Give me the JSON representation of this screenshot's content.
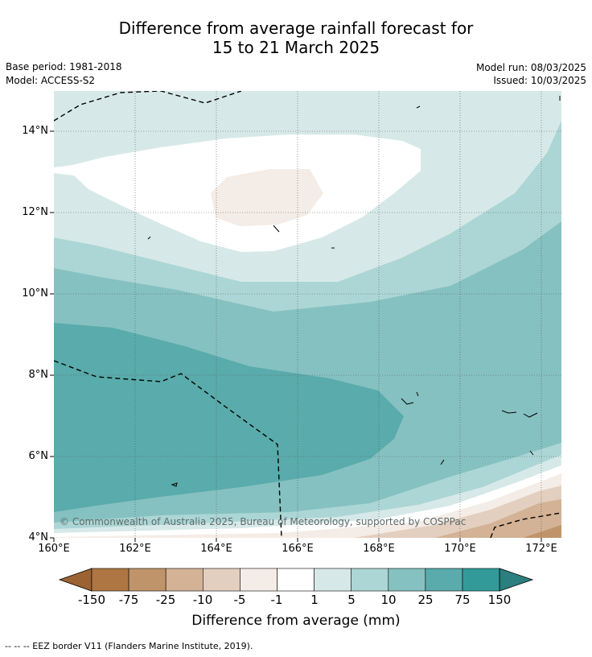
{
  "title_line1": "Difference from average rainfall forecast for",
  "title_line2": "15 to 21 March 2025",
  "base_period": "Base period: 1981-2018",
  "model": "Model: ACCESS-S2",
  "model_run": "Model run: 08/03/2025",
  "issued": "Issued: 10/03/2025",
  "lat_labels": [
    "14°N",
    "12°N",
    "10°N",
    "8°N",
    "6°N",
    "4°N"
  ],
  "lon_labels": [
    "160°E",
    "162°E",
    "164°E",
    "166°E",
    "168°E",
    "170°E",
    "172°E"
  ],
  "copyright": "© Commonwealth of Australia 2025, Bureau of Meteorology, supported by COSPPac",
  "colorbar": {
    "labels": [
      "-150",
      "-75",
      "-25",
      "-10",
      "-5",
      "-1",
      "1",
      "5",
      "10",
      "25",
      "75",
      "150"
    ],
    "colors": [
      "#9b6233",
      "#ae7642",
      "#c0946a",
      "#d3b295",
      "#e3cfbf",
      "#f4ece6",
      "#ffffff",
      "#d6e9e8",
      "#acd6d5",
      "#85c1c0",
      "#5aabab",
      "#329b9a",
      "#2b7f7e"
    ],
    "title": "Difference from average (mm)"
  },
  "legend_footer": "--  --  -- EEZ border V11 (Flanders Marine Institute, 2019)."
}
